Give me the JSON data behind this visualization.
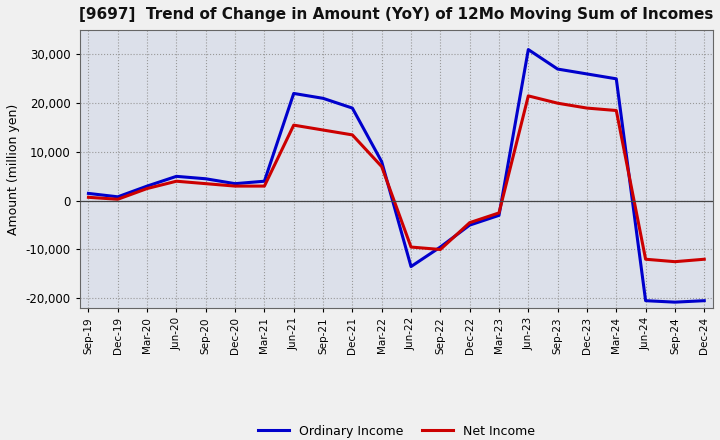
{
  "title": "[9697]  Trend of Change in Amount (YoY) of 12Mo Moving Sum of Incomes",
  "ylabel": "Amount (million yen)",
  "background_color": "#f0f0f0",
  "plot_background": "#e8e8f0",
  "grid_color": "#aaaaaa",
  "x_labels": [
    "Sep-19",
    "Dec-19",
    "Mar-20",
    "Jun-20",
    "Sep-20",
    "Dec-20",
    "Mar-21",
    "Jun-21",
    "Sep-21",
    "Dec-21",
    "Mar-22",
    "Jun-22",
    "Sep-22",
    "Dec-22",
    "Mar-23",
    "Jun-23",
    "Sep-23",
    "Dec-23",
    "Mar-24",
    "Jun-24",
    "Sep-24",
    "Dec-24"
  ],
  "ordinary_income": [
    1500,
    800,
    3000,
    5000,
    4500,
    3500,
    4000,
    22000,
    21000,
    19000,
    8000,
    -13500,
    -9500,
    -5000,
    -3000,
    31000,
    27000,
    26000,
    25000,
    -20500,
    -20800,
    -20500
  ],
  "net_income": [
    700,
    300,
    2500,
    4000,
    3500,
    3000,
    3000,
    15500,
    14500,
    13500,
    7000,
    -9500,
    -10000,
    -4500,
    -2500,
    21500,
    20000,
    19000,
    18500,
    -12000,
    -12500,
    -12000
  ],
  "ordinary_color": "#0000cc",
  "net_color": "#cc0000",
  "ylim": [
    -22000,
    35000
  ],
  "yticks": [
    -20000,
    -10000,
    0,
    10000,
    20000,
    30000
  ],
  "legend_labels": [
    "Ordinary Income",
    "Net Income"
  ],
  "line_width": 2.2
}
